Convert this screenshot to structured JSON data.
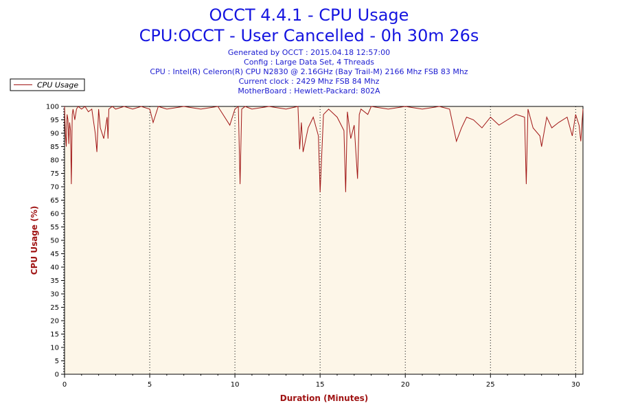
{
  "header": {
    "title": "OCCT 4.4.1 - CPU Usage",
    "subtitle": "CPU:OCCT - User Cancelled - 0h 30m 26s",
    "info_lines": [
      "Generated by OCCT : 2015.04.18 12:57:00",
      "Config : Large Data Set, 4 Threads",
      "CPU : Intel(R) Celeron(R) CPU N2830 @ 2.16GHz (Bay Trail-M) 2166 Mhz FSB 83 Mhz",
      "Current clock : 2429 Mhz FSB 84 Mhz",
      "MotherBoard : Hewlett-Packard: 802A"
    ]
  },
  "colors": {
    "title": "#1515e0",
    "info": "#1a1ad0",
    "series": "#a01414",
    "plot_background": "#fdf6e8",
    "axis_label": "#a01414"
  },
  "chart_data": {
    "type": "line",
    "xlabel": "Duration (Minutes)",
    "ylabel": "CPU Usage (%)",
    "xlim": [
      0,
      30.43
    ],
    "ylim": [
      0,
      100
    ],
    "x_ticks": [
      0,
      5,
      10,
      15,
      20,
      25,
      30
    ],
    "y_ticks": [
      0,
      5,
      10,
      15,
      20,
      25,
      30,
      35,
      40,
      45,
      50,
      55,
      60,
      65,
      70,
      75,
      80,
      85,
      90,
      95,
      100
    ],
    "grid": "vertical dotted lines at major x ticks",
    "legend": {
      "entries": [
        "CPU Usage"
      ],
      "placement": "top-left outside plot"
    },
    "series": [
      {
        "name": "CPU Usage",
        "x": [
          0,
          0.05,
          0.1,
          0.15,
          0.2,
          0.25,
          0.3,
          0.35,
          0.4,
          0.45,
          0.5,
          0.6,
          0.7,
          0.8,
          1.0,
          1.2,
          1.4,
          1.6,
          1.8,
          1.9,
          2.0,
          2.1,
          2.3,
          2.5,
          2.55,
          2.6,
          2.8,
          3.0,
          3.5,
          4.0,
          4.5,
          5.0,
          5.2,
          5.5,
          6.0,
          7.0,
          8.0,
          9.0,
          9.7,
          10.0,
          10.2,
          10.3,
          10.4,
          10.6,
          11.0,
          12.0,
          13.0,
          13.7,
          13.8,
          13.9,
          14.0,
          14.3,
          14.6,
          14.9,
          15.0,
          15.2,
          15.5,
          16.0,
          16.4,
          16.5,
          16.6,
          16.8,
          17.0,
          17.2,
          17.3,
          17.4,
          17.8,
          18.0,
          19.0,
          20.0,
          21.0,
          22.0,
          22.6,
          22.8,
          23.0,
          23.3,
          23.6,
          24.0,
          24.5,
          25.0,
          25.5,
          26.0,
          26.5,
          27.0,
          27.1,
          27.2,
          27.5,
          27.9,
          28.0,
          28.3,
          28.6,
          29.0,
          29.5,
          29.8,
          30.0,
          30.2,
          30.3,
          30.43
        ],
        "values": [
          100,
          90,
          85,
          97,
          95,
          86,
          94,
          91,
          71,
          97,
          99,
          95,
          99,
          100,
          99,
          100,
          98,
          99,
          90,
          83,
          99,
          92,
          88,
          96,
          88,
          99,
          100,
          99,
          100,
          99,
          100,
          99,
          94,
          100,
          99,
          100,
          99,
          100,
          93,
          99,
          100,
          71,
          99,
          100,
          99,
          100,
          99,
          100,
          84,
          94,
          83,
          92,
          96,
          89,
          68,
          97,
          99,
          96,
          91,
          68,
          98,
          88,
          93,
          73,
          97,
          99,
          97,
          100,
          99,
          100,
          99,
          100,
          99,
          93,
          87,
          92,
          96,
          95,
          92,
          96,
          93,
          95,
          97,
          96,
          71,
          99,
          92,
          89,
          85,
          96,
          92,
          94,
          96,
          89,
          97,
          93,
          87,
          99
        ]
      }
    ]
  }
}
